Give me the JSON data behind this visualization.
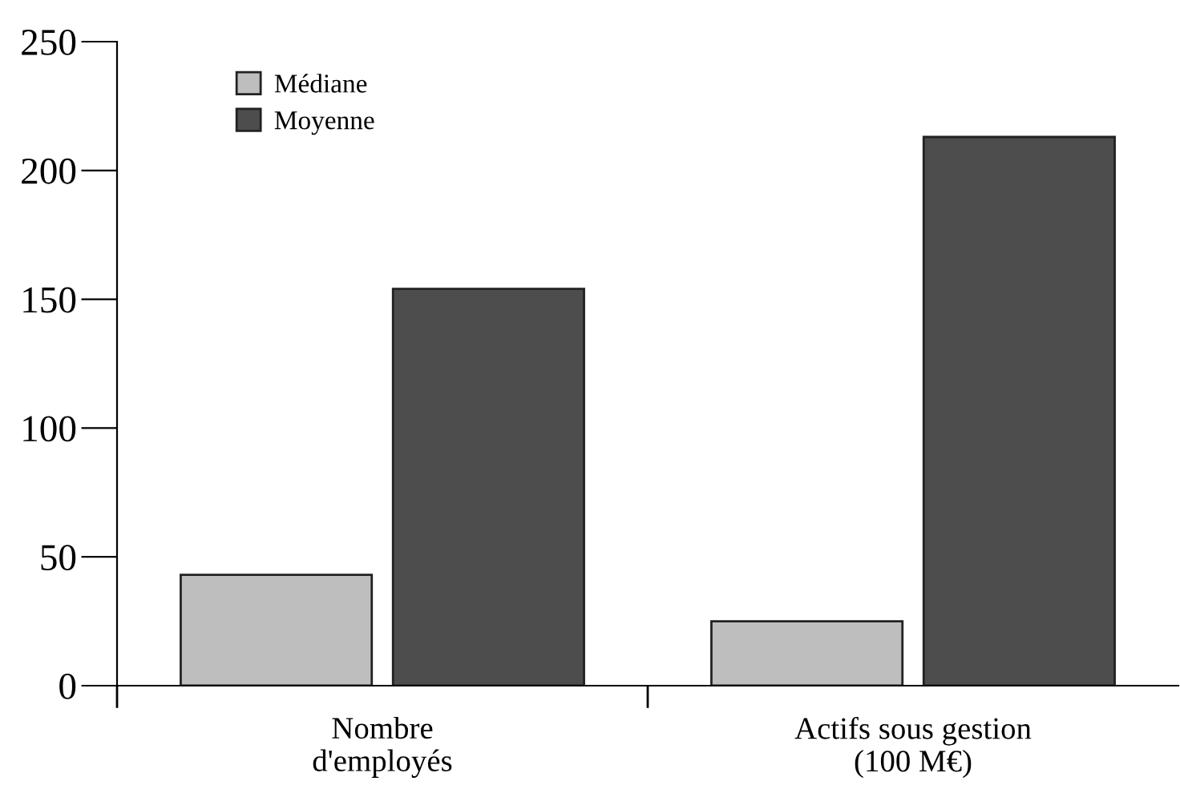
{
  "chart_data": {
    "type": "bar",
    "categories": [
      "Nombre\nd'employés",
      "Actifs sous gestion\n(100 M€)"
    ],
    "series": [
      {
        "name": "Médiane",
        "color": "#bebebe",
        "values": [
          43,
          25
        ]
      },
      {
        "name": "Moyenne",
        "color": "#4d4d4d",
        "values": [
          154,
          213
        ]
      }
    ],
    "ylim": [
      0,
      250
    ],
    "yticks": [
      0,
      50,
      100,
      150,
      200,
      250
    ],
    "grid": false,
    "legend": "top left"
  }
}
